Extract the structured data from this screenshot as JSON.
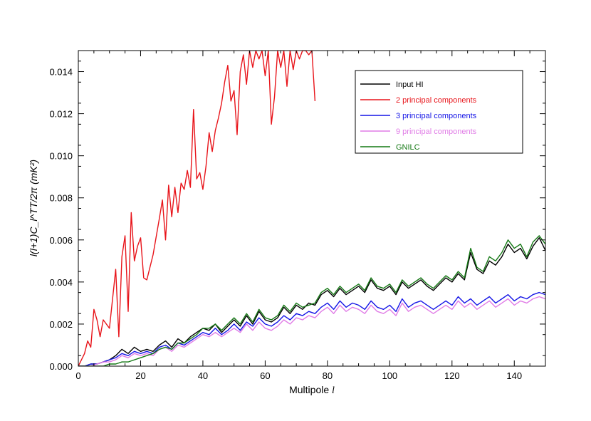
{
  "chart_data": {
    "type": "line",
    "xlabel": "Multipole ",
    "xlabel_symbol": "l",
    "ylabel": "l(l+1)C_l^TT/2π (mK²)",
    "xlim": [
      0,
      150
    ],
    "ylim": [
      0,
      0.015
    ],
    "x_ticks": [
      0,
      20,
      40,
      60,
      80,
      100,
      120,
      140
    ],
    "x_tick_labels": [
      "0",
      "20",
      "40",
      "60",
      "80",
      "100",
      "120",
      "140"
    ],
    "y_ticks": [
      0,
      0.002,
      0.004,
      0.006,
      0.008,
      0.01,
      0.012,
      0.014
    ],
    "y_tick_labels": [
      "0.000",
      "0.002",
      "0.004",
      "0.006",
      "0.008",
      "0.010",
      "0.012",
      "0.014"
    ],
    "grid": false,
    "legend_position": "top-right",
    "series": [
      {
        "name": "Input HI",
        "color": "#000000",
        "x": [
          0,
          2,
          4,
          6,
          8,
          10,
          12,
          14,
          16,
          18,
          20,
          22,
          24,
          26,
          28,
          30,
          32,
          34,
          36,
          38,
          40,
          42,
          44,
          46,
          48,
          50,
          52,
          54,
          56,
          58,
          60,
          62,
          64,
          66,
          68,
          70,
          72,
          74,
          76,
          78,
          80,
          82,
          84,
          86,
          88,
          90,
          92,
          94,
          96,
          98,
          100,
          102,
          104,
          106,
          108,
          110,
          112,
          114,
          116,
          118,
          120,
          122,
          124,
          126,
          128,
          130,
          132,
          134,
          136,
          138,
          140,
          142,
          144,
          146,
          148,
          150
        ],
        "values": [
          0.0,
          0.0,
          0.0001,
          0.0001,
          0.0002,
          0.0003,
          0.0005,
          0.0008,
          0.0006,
          0.0009,
          0.0007,
          0.0008,
          0.0007,
          0.001,
          0.0012,
          0.0009,
          0.0013,
          0.0011,
          0.0014,
          0.0016,
          0.0018,
          0.0017,
          0.002,
          0.0016,
          0.0019,
          0.0022,
          0.0019,
          0.0024,
          0.002,
          0.0026,
          0.0022,
          0.0021,
          0.0023,
          0.0028,
          0.0025,
          0.0029,
          0.0027,
          0.003,
          0.0029,
          0.0034,
          0.0036,
          0.0033,
          0.0037,
          0.0034,
          0.0036,
          0.0038,
          0.0035,
          0.0041,
          0.0037,
          0.0036,
          0.0038,
          0.0034,
          0.004,
          0.0037,
          0.0039,
          0.0041,
          0.0038,
          0.0036,
          0.0039,
          0.0042,
          0.004,
          0.0044,
          0.0041,
          0.0054,
          0.0046,
          0.0044,
          0.005,
          0.0048,
          0.0052,
          0.0058,
          0.0054,
          0.0056,
          0.0051,
          0.0057,
          0.0061,
          0.0055
        ]
      },
      {
        "name": "2 principal components",
        "color": "#e8141a",
        "x": [
          0,
          2,
          3,
          4,
          5,
          6,
          7,
          8,
          10,
          11,
          12,
          13,
          14,
          15,
          16,
          17,
          18,
          19,
          20,
          21,
          22,
          24,
          26,
          27,
          28,
          29,
          30,
          31,
          32,
          33,
          34,
          35,
          36,
          37,
          38,
          39,
          40,
          41,
          42,
          43,
          44,
          45,
          46,
          47,
          48,
          49,
          50,
          51,
          52,
          53,
          54,
          55,
          56,
          57,
          58,
          59,
          60,
          61,
          62,
          63,
          64,
          65,
          66,
          67,
          68,
          69,
          70,
          71,
          72,
          73,
          74,
          75,
          76
        ],
        "values": [
          0.0,
          0.0006,
          0.0012,
          0.0009,
          0.0027,
          0.0022,
          0.0014,
          0.0022,
          0.0018,
          0.0032,
          0.0046,
          0.0014,
          0.0052,
          0.0062,
          0.0026,
          0.0073,
          0.005,
          0.0057,
          0.0061,
          0.0042,
          0.0041,
          0.0053,
          0.007,
          0.0079,
          0.006,
          0.0086,
          0.0071,
          0.0085,
          0.0073,
          0.0087,
          0.0084,
          0.0093,
          0.0085,
          0.0122,
          0.0089,
          0.0092,
          0.0084,
          0.0095,
          0.0111,
          0.0102,
          0.0112,
          0.0118,
          0.0125,
          0.0135,
          0.0143,
          0.0126,
          0.0131,
          0.011,
          0.014,
          0.0148,
          0.0134,
          0.015,
          0.0142,
          0.015,
          0.0146,
          0.015,
          0.0138,
          0.015,
          0.0115,
          0.0128,
          0.015,
          0.0142,
          0.015,
          0.0133,
          0.015,
          0.0141,
          0.015,
          0.0146,
          0.015,
          0.015,
          0.0148,
          0.015,
          0.0126
        ]
      },
      {
        "name": "3 principal components",
        "color": "#1414e6",
        "x": [
          0,
          2,
          4,
          6,
          8,
          10,
          12,
          14,
          16,
          18,
          20,
          22,
          24,
          26,
          28,
          30,
          32,
          34,
          36,
          38,
          40,
          42,
          44,
          46,
          48,
          50,
          52,
          54,
          56,
          58,
          60,
          62,
          64,
          66,
          68,
          70,
          72,
          74,
          76,
          78,
          80,
          82,
          84,
          86,
          88,
          90,
          92,
          94,
          96,
          98,
          100,
          102,
          104,
          106,
          108,
          110,
          112,
          114,
          116,
          118,
          120,
          122,
          124,
          126,
          128,
          130,
          132,
          134,
          136,
          138,
          140,
          142,
          144,
          146,
          148,
          150
        ],
        "values": [
          0.0,
          0.0,
          0.0001,
          0.0001,
          0.0002,
          0.0003,
          0.0004,
          0.0006,
          0.0005,
          0.0007,
          0.0006,
          0.0007,
          0.0006,
          0.0009,
          0.001,
          0.0008,
          0.0011,
          0.001,
          0.0012,
          0.0014,
          0.0016,
          0.0015,
          0.0018,
          0.0015,
          0.0017,
          0.002,
          0.0017,
          0.0021,
          0.0019,
          0.0023,
          0.002,
          0.0019,
          0.0021,
          0.0024,
          0.0022,
          0.0025,
          0.0024,
          0.0026,
          0.0025,
          0.0028,
          0.003,
          0.0027,
          0.0031,
          0.0028,
          0.003,
          0.0029,
          0.0027,
          0.0031,
          0.0028,
          0.0027,
          0.0029,
          0.0026,
          0.0032,
          0.0028,
          0.003,
          0.0031,
          0.0029,
          0.0027,
          0.0029,
          0.0031,
          0.0029,
          0.0033,
          0.003,
          0.0032,
          0.0029,
          0.0031,
          0.0033,
          0.003,
          0.0032,
          0.0034,
          0.0031,
          0.0033,
          0.0032,
          0.0034,
          0.0035,
          0.0034
        ]
      },
      {
        "name": "9 principal components",
        "color": "#e07ce6",
        "x": [
          0,
          2,
          4,
          6,
          8,
          10,
          12,
          14,
          16,
          18,
          20,
          22,
          24,
          26,
          28,
          30,
          32,
          34,
          36,
          38,
          40,
          42,
          44,
          46,
          48,
          50,
          52,
          54,
          56,
          58,
          60,
          62,
          64,
          66,
          68,
          70,
          72,
          74,
          76,
          78,
          80,
          82,
          84,
          86,
          88,
          90,
          92,
          94,
          96,
          98,
          100,
          102,
          104,
          106,
          108,
          110,
          112,
          114,
          116,
          118,
          120,
          122,
          124,
          126,
          128,
          130,
          132,
          134,
          136,
          138,
          140,
          142,
          144,
          146,
          148,
          150
        ],
        "values": [
          0.0,
          0.0,
          0.0,
          0.0001,
          0.0002,
          0.0002,
          0.0003,
          0.0005,
          0.0004,
          0.0006,
          0.0005,
          0.0006,
          0.0005,
          0.0008,
          0.0009,
          0.0007,
          0.001,
          0.0009,
          0.0011,
          0.0013,
          0.0015,
          0.0014,
          0.0016,
          0.0014,
          0.0016,
          0.0018,
          0.0016,
          0.002,
          0.0017,
          0.0021,
          0.0018,
          0.0017,
          0.0019,
          0.0022,
          0.002,
          0.0023,
          0.0022,
          0.0024,
          0.0023,
          0.0026,
          0.0028,
          0.0025,
          0.0029,
          0.0026,
          0.0028,
          0.0027,
          0.0025,
          0.0029,
          0.0026,
          0.0025,
          0.0027,
          0.0024,
          0.003,
          0.0026,
          0.0028,
          0.0029,
          0.0027,
          0.0025,
          0.0027,
          0.0029,
          0.0027,
          0.0031,
          0.0028,
          0.003,
          0.0027,
          0.0029,
          0.0031,
          0.0028,
          0.003,
          0.0032,
          0.0029,
          0.0031,
          0.003,
          0.0032,
          0.0033,
          0.0032
        ]
      },
      {
        "name": "GNILC",
        "color": "#147814",
        "x": [
          0,
          2,
          4,
          6,
          8,
          10,
          12,
          14,
          16,
          18,
          20,
          22,
          24,
          26,
          28,
          30,
          32,
          34,
          36,
          38,
          40,
          42,
          44,
          46,
          48,
          50,
          52,
          54,
          56,
          58,
          60,
          62,
          64,
          66,
          68,
          70,
          72,
          74,
          76,
          78,
          80,
          82,
          84,
          86,
          88,
          90,
          92,
          94,
          96,
          98,
          100,
          102,
          104,
          106,
          108,
          110,
          112,
          114,
          116,
          118,
          120,
          122,
          124,
          126,
          128,
          130,
          132,
          134,
          136,
          138,
          140,
          142,
          144,
          146,
          148,
          150
        ],
        "values": [
          0.0,
          0.0,
          0.0,
          0.0,
          0.0,
          0.0001,
          0.0001,
          0.0002,
          0.0002,
          0.0003,
          0.0004,
          0.0005,
          0.0006,
          0.0008,
          0.0009,
          0.0008,
          0.0011,
          0.0011,
          0.0013,
          0.0015,
          0.0018,
          0.0018,
          0.002,
          0.0017,
          0.002,
          0.0023,
          0.002,
          0.0025,
          0.0021,
          0.0027,
          0.0023,
          0.0022,
          0.0024,
          0.0029,
          0.0026,
          0.003,
          0.0028,
          0.0029,
          0.003,
          0.0035,
          0.0037,
          0.0034,
          0.0038,
          0.0035,
          0.0037,
          0.0039,
          0.0036,
          0.0042,
          0.0038,
          0.0037,
          0.0039,
          0.0035,
          0.0041,
          0.0038,
          0.004,
          0.0042,
          0.0039,
          0.0037,
          0.004,
          0.0043,
          0.0041,
          0.0045,
          0.0042,
          0.0056,
          0.0047,
          0.0045,
          0.0052,
          0.005,
          0.0054,
          0.006,
          0.0056,
          0.0058,
          0.0052,
          0.0059,
          0.0062,
          0.0058
        ]
      }
    ]
  }
}
